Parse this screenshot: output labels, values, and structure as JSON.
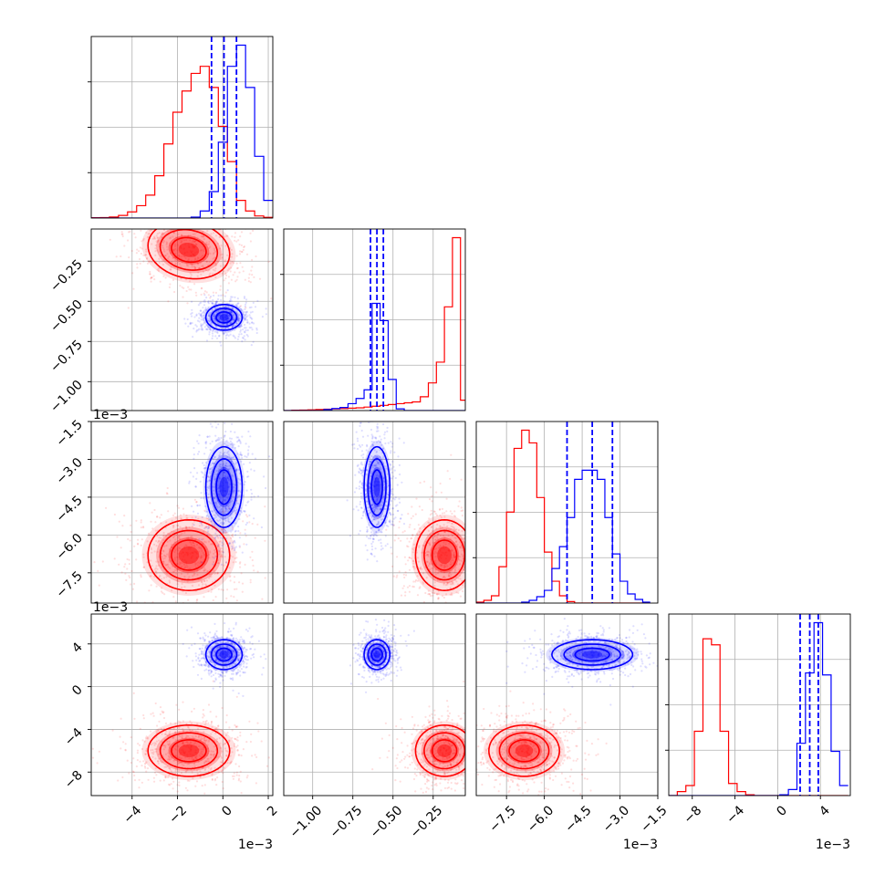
{
  "chart_data": {
    "type": "corner",
    "colors": {
      "series_a": "#ff0000",
      "series_b": "#0000ff",
      "quantile_lines": "#0000ff",
      "grid": "#b0b0b0"
    },
    "grid": true,
    "series": [
      {
        "color": "#ff0000",
        "means": [
          -0.0015,
          -0.18,
          -0.0068,
          -0.006
        ],
        "stds": [
          0.0009,
          0.09,
          0.0007,
          0.0012
        ],
        "corr_0_1": -0.15
      },
      {
        "color": "#0000ff",
        "means": [
          5e-05,
          -0.6,
          -0.0041,
          0.003
        ],
        "stds": [
          0.0004,
          0.04,
          0.0008,
          0.0007
        ],
        "corr_0_1": 0.0
      }
    ],
    "quantiles_series_b": [
      [
        -0.0005,
        5e-05,
        0.0006
      ],
      [
        -0.64,
        -0.6,
        -0.56
      ],
      [
        -0.0051,
        -0.0041,
        -0.0033
      ],
      [
        0.0021,
        0.003,
        0.0038
      ]
    ],
    "axes": [
      {
        "range": [
          -0.0058,
          0.0022
        ],
        "ticks": [
          -0.004,
          -0.002,
          0.0,
          0.002
        ],
        "tick_labels": [
          "−4",
          "−2",
          "0",
          "2"
        ],
        "offset": "1e−3"
      },
      {
        "range": [
          -1.18,
          -0.05
        ],
        "ticks": [
          -1.0,
          -0.75,
          -0.5,
          -0.25
        ],
        "tick_labels": [
          "−1.00",
          "−0.75",
          "−0.50",
          "−0.25"
        ],
        "offset": ""
      },
      {
        "range": [
          -0.0087,
          -0.0015
        ],
        "ticks": [
          -0.0075,
          -0.006,
          -0.0045,
          -0.003,
          -0.0015
        ],
        "tick_labels": [
          "−7.5",
          "−6.0",
          "−4.5",
          "−3.0",
          "−1.5"
        ],
        "offset": "1e−3"
      },
      {
        "range": [
          -0.0102,
          0.0068
        ],
        "ticks": [
          -0.008,
          -0.004,
          0.0,
          0.004
        ],
        "tick_labels": [
          "−8",
          "−4",
          "0",
          "4"
        ],
        "offset": "1e−3"
      }
    ],
    "histograms": [
      {
        "bins": [
          -0.0058,
          -0.0054,
          -0.005,
          -0.0046,
          -0.0042,
          -0.0038,
          -0.0034,
          -0.003,
          -0.0026,
          -0.0022,
          -0.0018,
          -0.0014,
          -0.001,
          -0.0006,
          -0.0002,
          0.0002,
          0.0006,
          0.001,
          0.0014,
          0.0018,
          0.0022
        ],
        "series_a": [
          0.002,
          0.003,
          0.006,
          0.015,
          0.035,
          0.07,
          0.13,
          0.24,
          0.42,
          0.6,
          0.72,
          0.82,
          0.86,
          0.74,
          0.52,
          0.32,
          0.1,
          0.04,
          0.012,
          0.004
        ],
        "series_b": [
          0,
          0,
          0,
          0,
          0,
          0,
          0,
          0,
          0,
          0,
          0,
          0.005,
          0.04,
          0.15,
          0.43,
          0.86,
          0.98,
          0.74,
          0.35,
          0.1
        ]
      },
      {
        "bins": [
          -1.18,
          -1.13,
          -1.08,
          -1.03,
          -0.98,
          -0.93,
          -0.88,
          -0.83,
          -0.78,
          -0.73,
          -0.68,
          -0.63,
          -0.58,
          -0.53,
          -0.48,
          -0.43,
          -0.38,
          -0.33,
          -0.28,
          -0.23,
          -0.18,
          -0.13,
          -0.08,
          -0.05
        ],
        "series_a": [
          0,
          0.002,
          0.003,
          0.004,
          0.006,
          0.008,
          0.01,
          0.012,
          0.014,
          0.016,
          0.02,
          0.025,
          0.03,
          0.035,
          0.04,
          0.045,
          0.05,
          0.08,
          0.16,
          0.28,
          0.6,
          1.0,
          0.06
        ],
        "series_b": [
          0,
          0,
          0,
          0,
          0,
          0.006,
          0.012,
          0.018,
          0.04,
          0.07,
          0.12,
          0.62,
          0.52,
          0.18,
          0.01,
          0,
          0,
          0,
          0,
          0,
          0,
          0,
          0
        ]
      },
      {
        "bins": [
          -0.0087,
          -0.0084,
          -0.0081,
          -0.0078,
          -0.0075,
          -0.0072,
          -0.0069,
          -0.0066,
          -0.0063,
          -0.006,
          -0.0057,
          -0.0054,
          -0.0051,
          -0.0048,
          -0.0045,
          -0.0042,
          -0.0039,
          -0.0036,
          -0.0033,
          -0.003,
          -0.0027,
          -0.0024,
          -0.0021,
          -0.0018
        ],
        "series_a": [
          0.005,
          0.015,
          0.04,
          0.2,
          0.5,
          0.85,
          0.95,
          0.88,
          0.58,
          0.28,
          0.12,
          0.04,
          0.008,
          0,
          0,
          0,
          0,
          0,
          0,
          0,
          0,
          0,
          0
        ],
        "series_b": [
          0,
          0,
          0,
          0,
          0,
          0,
          0.005,
          0.015,
          0.035,
          0.07,
          0.19,
          0.31,
          0.47,
          0.68,
          0.73,
          0.73,
          0.68,
          0.47,
          0.27,
          0.12,
          0.05,
          0.02,
          0.005
        ]
      },
      {
        "bins": [
          -0.0102,
          -0.0094,
          -0.0086,
          -0.0078,
          -0.007,
          -0.0062,
          -0.0054,
          -0.0046,
          -0.0038,
          -0.003,
          -0.0022,
          -0.0014,
          -0.0006,
          0.0002,
          0.001,
          0.0018,
          0.0026,
          0.0034,
          0.0042,
          0.005,
          0.0058,
          0.0066
        ],
        "series_a": [
          0,
          0.02,
          0.05,
          0.32,
          0.78,
          0.75,
          0.32,
          0.06,
          0.02,
          0.004,
          0,
          0,
          0,
          0,
          0,
          0,
          0,
          0,
          0,
          0,
          0
        ],
        "series_b": [
          0,
          0,
          0,
          0,
          0,
          0,
          0,
          0,
          0,
          0,
          0,
          0,
          0,
          0.004,
          0.03,
          0.26,
          0.61,
          0.86,
          0.6,
          0.22,
          0.05
        ]
      }
    ]
  }
}
